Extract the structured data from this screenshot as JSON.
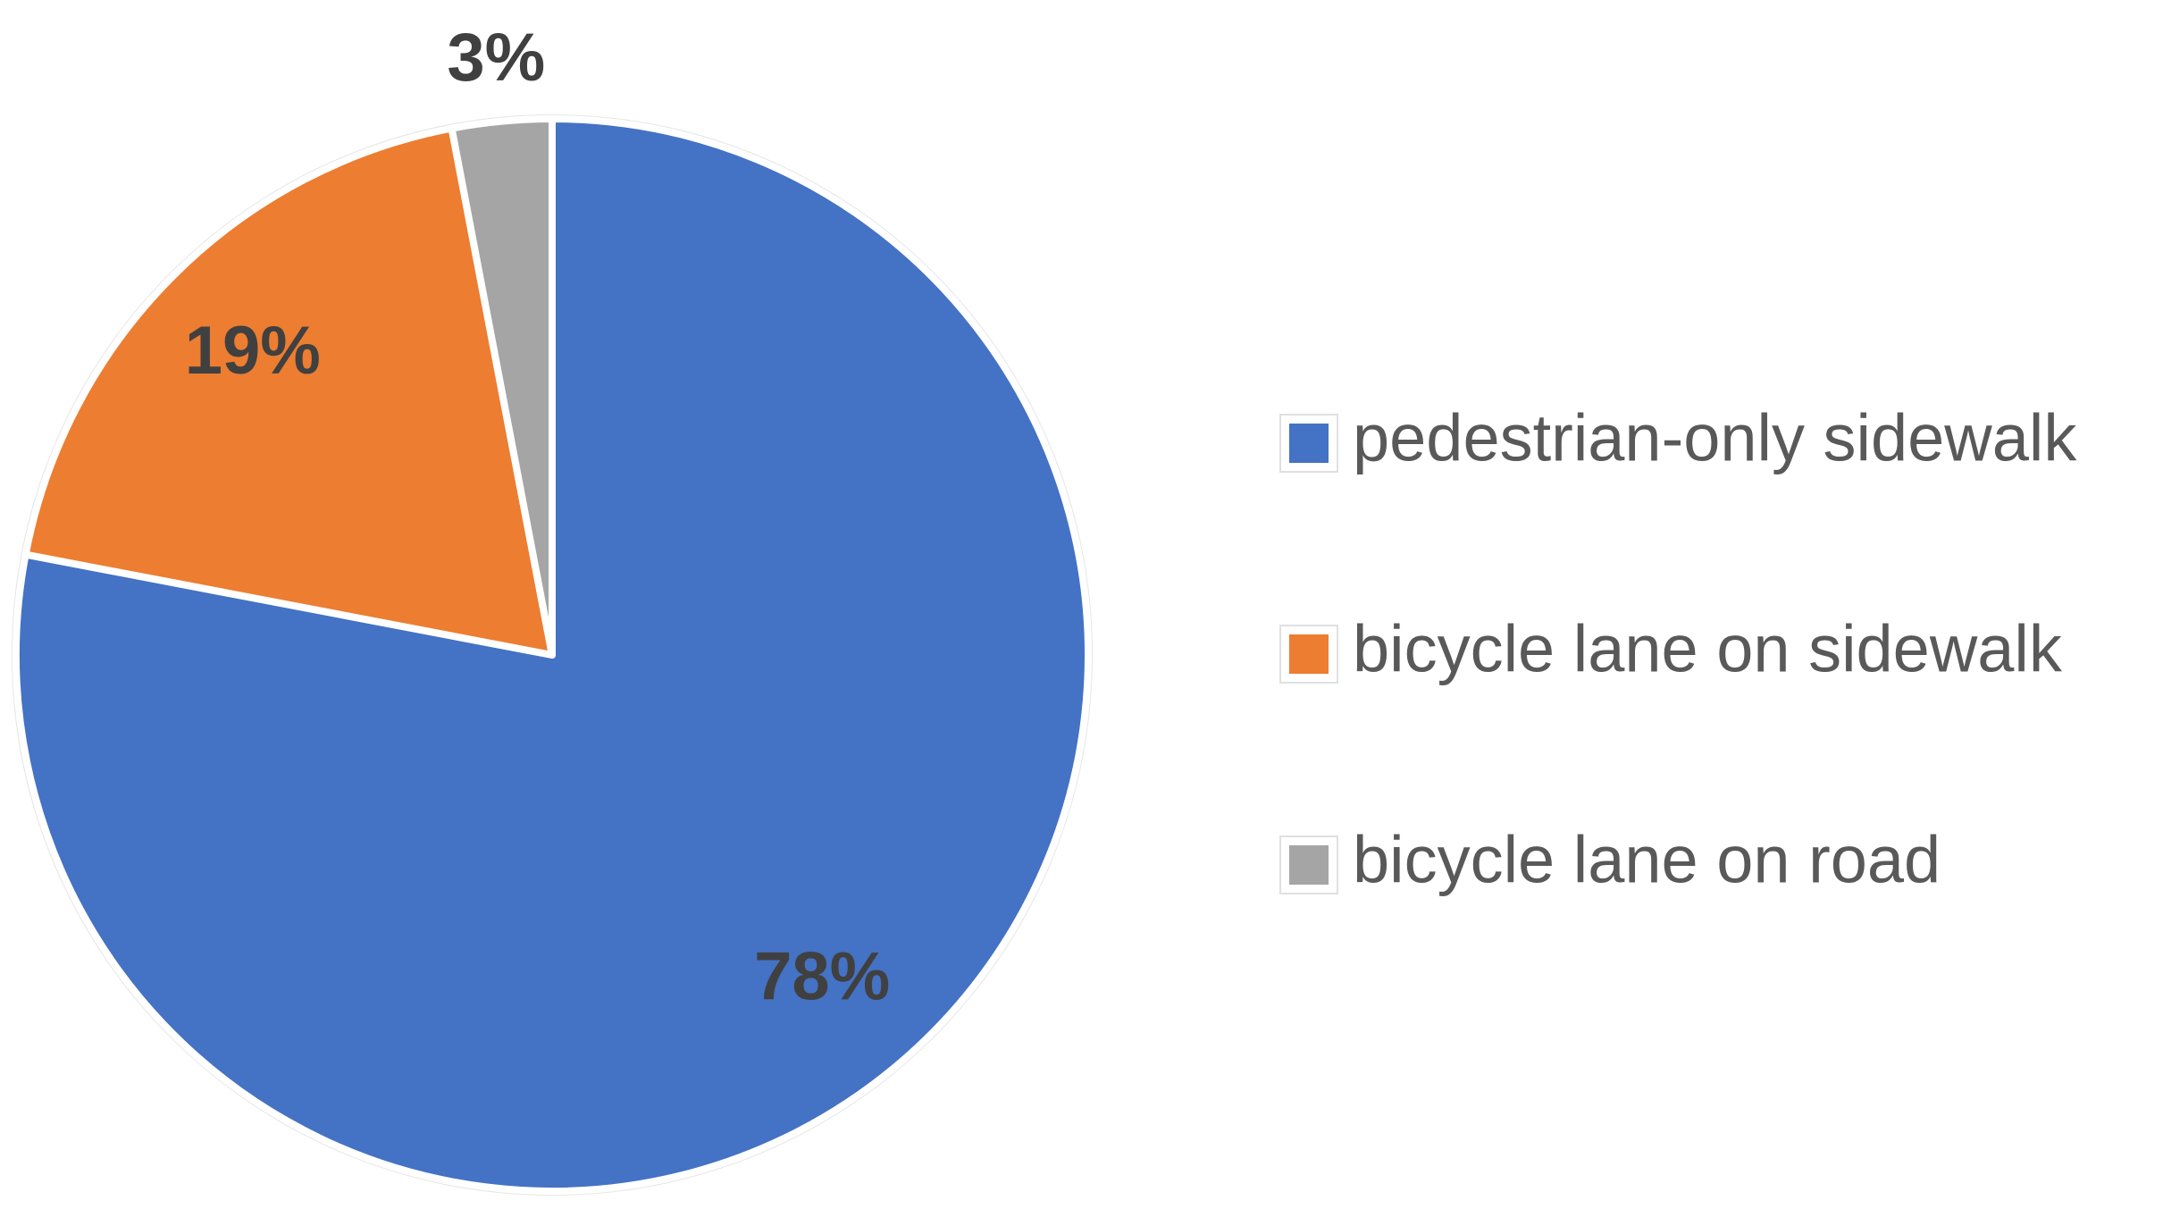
{
  "chart_data": {
    "type": "pie",
    "categories": [
      "pedestrian-only sidewalk",
      "bicycle lane on sidewalk",
      "bicycle lane on road"
    ],
    "values": [
      78,
      19,
      3
    ],
    "value_labels": [
      "78%",
      "19%",
      "3%"
    ],
    "colors": [
      "#4472c4",
      "#ed7d31",
      "#a5a5a5"
    ],
    "legend": "right"
  }
}
